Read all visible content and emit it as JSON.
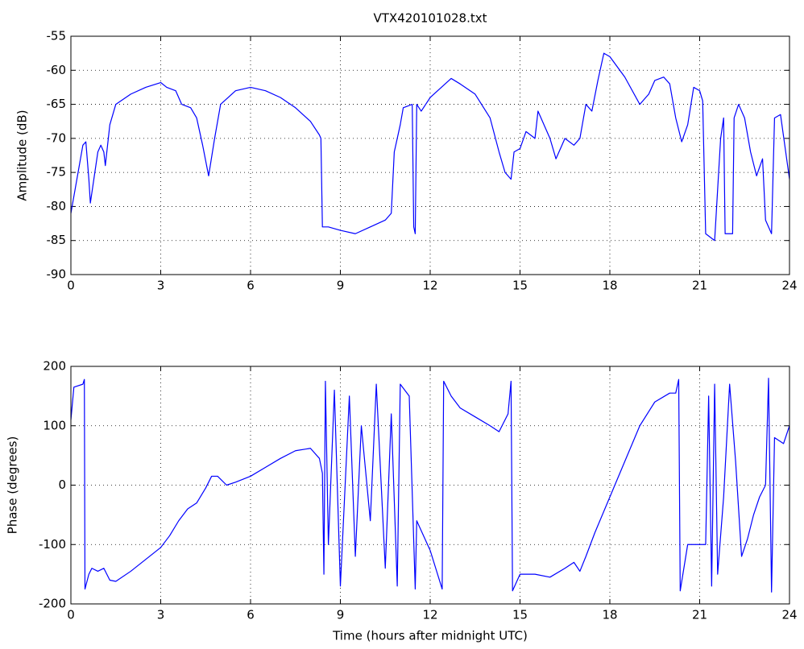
{
  "chart_data": [
    {
      "type": "line",
      "title": "VTX420101028.txt",
      "ylabel": "Amplitude (dB)",
      "color": "#0000ff",
      "grid": true,
      "xlim": [
        0,
        24
      ],
      "xticks": [
        0,
        3,
        6,
        9,
        12,
        15,
        18,
        21,
        24
      ],
      "ylim": [
        -90,
        -55
      ],
      "yticks": [
        -90,
        -85,
        -80,
        -75,
        -70,
        -65,
        -60,
        -55
      ],
      "x": [
        0,
        0.2,
        0.4,
        0.5,
        0.6,
        0.65,
        0.8,
        0.9,
        1.0,
        1.1,
        1.15,
        1.3,
        1.5,
        2,
        2.5,
        3,
        3.2,
        3.5,
        3.7,
        4.0,
        4.2,
        4.4,
        4.6,
        4.8,
        5,
        5.5,
        6,
        6.5,
        7,
        7.5,
        8,
        8.3,
        8.35,
        8.4,
        8.6,
        9,
        9.5,
        10,
        10.5,
        10.7,
        10.8,
        11,
        11.1,
        11.4,
        11.45,
        11.5,
        11.55,
        11.7,
        12,
        12.5,
        12.7,
        13,
        13.5,
        14,
        14.3,
        14.5,
        14.7,
        14.8,
        15,
        15.2,
        15.5,
        15.6,
        16,
        16.2,
        16.5,
        16.8,
        17,
        17.2,
        17.4,
        17.6,
        17.8,
        18,
        18.5,
        19,
        19.3,
        19.5,
        19.8,
        20,
        20.2,
        20.4,
        20.6,
        20.8,
        21,
        21.1,
        21.2,
        21.5,
        21.7,
        21.8,
        21.85,
        22.1,
        22.15,
        22.3,
        22.5,
        22.7,
        22.9,
        23.1,
        23.2,
        23.4,
        23.5,
        23.7,
        24
      ],
      "values": [
        -81,
        -76,
        -71,
        -70.5,
        -76,
        -79.5,
        -75,
        -72,
        -71,
        -72,
        -74,
        -68,
        -65,
        -63.5,
        -62.5,
        -61.8,
        -62.5,
        -63,
        -65,
        -65.5,
        -67,
        -71,
        -75.5,
        -70,
        -65,
        -63,
        -62.5,
        -63,
        -64,
        -65.5,
        -67.5,
        -69.5,
        -70,
        -83,
        -83,
        -83.5,
        -84,
        -83,
        -82,
        -81,
        -72,
        -68,
        -65.5,
        -65,
        -83,
        -84,
        -65,
        -66,
        -64,
        -62,
        -61.2,
        -62,
        -63.5,
        -67,
        -72,
        -75,
        -76,
        -72,
        -71.5,
        -69,
        -70,
        -66,
        -70,
        -73,
        -70,
        -71,
        -70,
        -65,
        -66,
        -61.5,
        -57.5,
        -58,
        -61,
        -65,
        -63.5,
        -61.5,
        -61,
        -62,
        -67,
        -70.5,
        -68,
        -62.5,
        -63,
        -64.5,
        -84,
        -85,
        -70,
        -67,
        -84,
        -84,
        -67,
        -65,
        -67,
        -72,
        -75.5,
        -73,
        -82,
        -84,
        -67,
        -66.5,
        -76
      ]
    },
    {
      "type": "line",
      "xlabel": "Time (hours after midnight UTC)",
      "ylabel": "Phase (degrees)",
      "color": "#0000ff",
      "grid": true,
      "xlim": [
        0,
        24
      ],
      "xticks": [
        0,
        3,
        6,
        9,
        12,
        15,
        18,
        21,
        24
      ],
      "ylim": [
        -200,
        200
      ],
      "yticks": [
        -200,
        -100,
        0,
        100,
        200
      ],
      "x": [
        0,
        0.1,
        0.4,
        0.45,
        0.47,
        0.6,
        0.7,
        0.9,
        1.1,
        1.3,
        1.5,
        2,
        2.5,
        3,
        3.3,
        3.6,
        3.9,
        4.2,
        4.5,
        4.7,
        4.9,
        5.2,
        5.5,
        6,
        6.5,
        7,
        7.5,
        8,
        8.3,
        8.4,
        8.45,
        8.5,
        8.6,
        8.8,
        9,
        9.3,
        9.5,
        9.7,
        10,
        10.2,
        10.5,
        10.7,
        10.9,
        11,
        11.3,
        11.5,
        11.55,
        12,
        12.4,
        12.45,
        12.7,
        13,
        13.5,
        14,
        14.3,
        14.6,
        14.7,
        14.75,
        15,
        15.5,
        16,
        16.5,
        16.8,
        17,
        17.2,
        17.5,
        18,
        18.5,
        19,
        19.5,
        20,
        20.2,
        20.3,
        20.35,
        20.6,
        21.2,
        21.3,
        21.4,
        21.5,
        21.6,
        21.8,
        22,
        22.2,
        22.4,
        22.6,
        22.8,
        23,
        23.2,
        23.3,
        23.4,
        23.5,
        23.8,
        24
      ],
      "values": [
        110,
        165,
        170,
        178,
        -175,
        -150,
        -140,
        -145,
        -140,
        -160,
        -162,
        -145,
        -125,
        -105,
        -85,
        -60,
        -40,
        -30,
        -5,
        15,
        15,
        0,
        5,
        15,
        30,
        45,
        58,
        62,
        45,
        20,
        -150,
        175,
        -100,
        160,
        -170,
        150,
        -120,
        100,
        -60,
        170,
        -140,
        120,
        -170,
        170,
        150,
        -175,
        -60,
        -110,
        -175,
        175,
        150,
        130,
        115,
        100,
        90,
        120,
        175,
        -178,
        -150,
        -150,
        -155,
        -140,
        -130,
        -145,
        -120,
        -80,
        -20,
        40,
        100,
        140,
        155,
        155,
        178,
        -178,
        -100,
        -100,
        150,
        -170,
        170,
        -150,
        -20,
        170,
        40,
        -120,
        -90,
        -50,
        -20,
        0,
        180,
        -180,
        80,
        70,
        100
      ]
    }
  ]
}
